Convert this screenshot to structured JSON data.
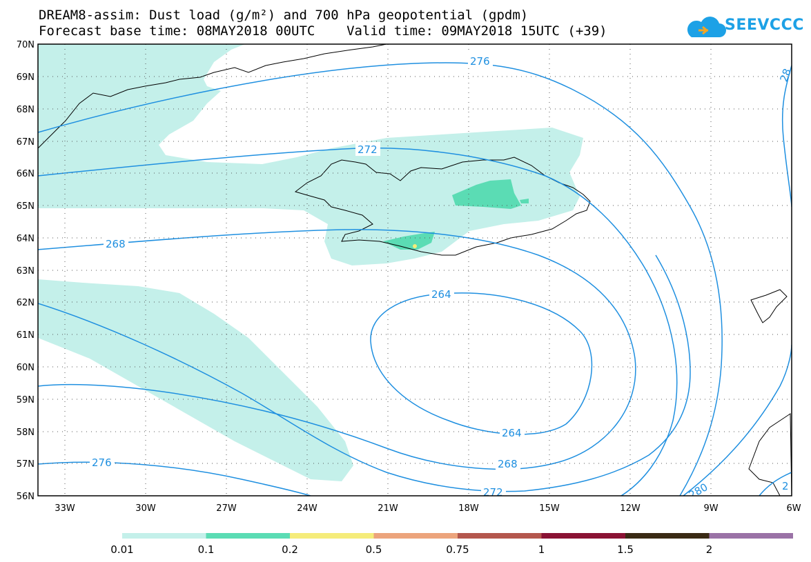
{
  "header": {
    "title_line1": "DREAM8-assim: Dust load (g/m²) and 700 hPa geopotential (gpdm)",
    "title_line2": "Forecast base time: 08MAY2018 00UTC    Valid time: 09MAY2018 15UTC (+39)"
  },
  "logo": {
    "text": "SEEVCCC",
    "icon": "cloud-icon",
    "color": "#1da1e6"
  },
  "map": {
    "region": "North Atlantic around Iceland",
    "lon_range": [
      -34,
      -6
    ],
    "lat_range": [
      56,
      70
    ],
    "lat_labels": [
      "70N",
      "69N",
      "68N",
      "67N",
      "66N",
      "65N",
      "64N",
      "63N",
      "62N",
      "61N",
      "60N",
      "59N",
      "58N",
      "57N",
      "56N"
    ],
    "lon_labels": [
      "33W",
      "30W",
      "27W",
      "24W",
      "21W",
      "18W",
      "15W",
      "12W",
      "9W",
      "6W"
    ],
    "grid_style": "dotted",
    "coastline_color": "#000000",
    "contour_color": "#1e8fe0",
    "contour_labels": [
      "276",
      "272",
      "268",
      "264",
      "264",
      "268",
      "272",
      "276",
      "280",
      "28",
      "2"
    ]
  },
  "legend": {
    "labels": [
      "0.01",
      "0.1",
      "0.2",
      "0.5",
      "0.75",
      "1",
      "1.5",
      "2"
    ],
    "colors": [
      "#c4f0ea",
      "#5bdcb4",
      "#f5ec7a",
      "#eca47c",
      "#b4574d",
      "#8a1234",
      "#3a2a14",
      "#9a72a6"
    ]
  }
}
